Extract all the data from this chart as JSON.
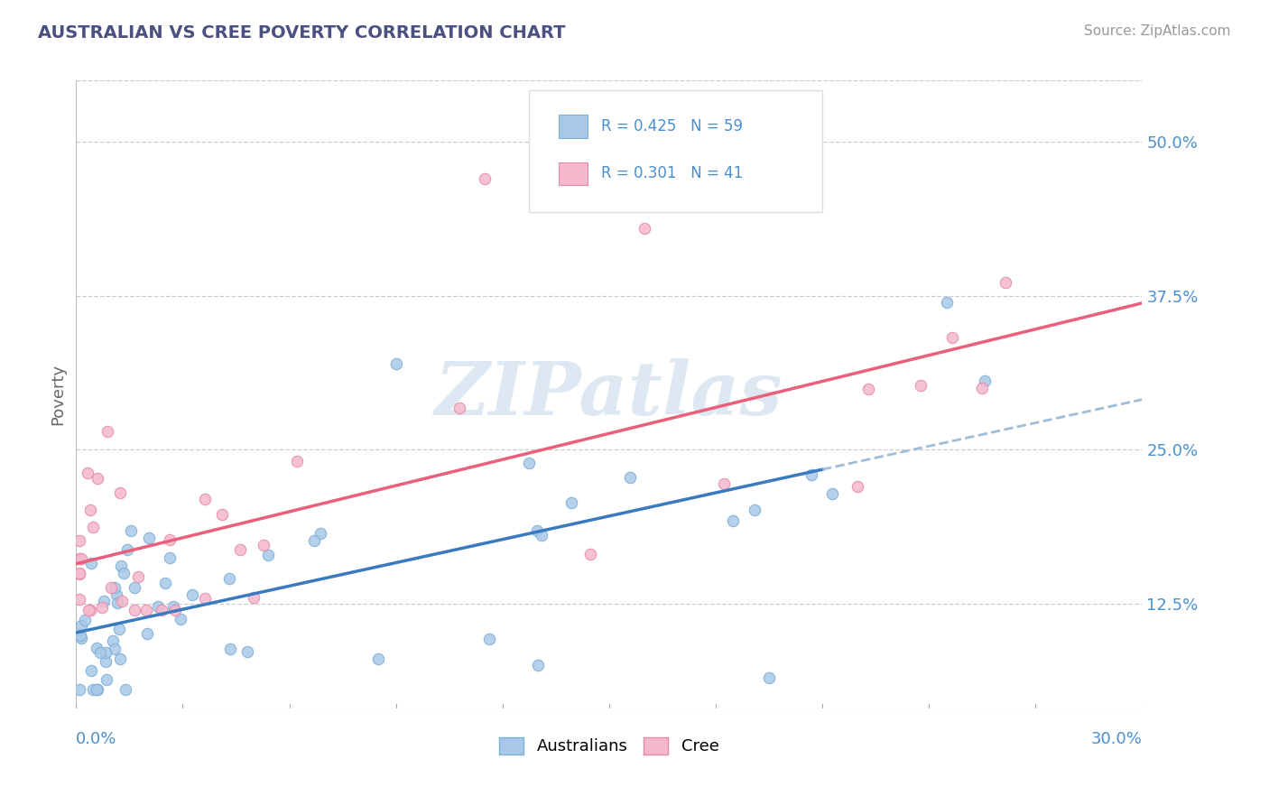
{
  "title": "AUSTRALIAN VS CREE POVERTY CORRELATION CHART",
  "source": "Source: ZipAtlas.com",
  "ylabel_ticks": [
    0.125,
    0.25,
    0.375,
    0.5
  ],
  "ylabel_labels": [
    "12.5%",
    "25.0%",
    "37.5%",
    "50.0%"
  ],
  "xmin": 0.0,
  "xmax": 0.3,
  "ymin": 0.04,
  "ymax": 0.55,
  "legend_r1": "R = 0.425",
  "legend_n1": "N = 59",
  "legend_r2": "R = 0.301",
  "legend_n2": "N = 41",
  "legend_bottom": [
    "Australians",
    "Cree"
  ],
  "australian_scatter_color": "#a8c8e8",
  "australian_edge_color": "#7bafd4",
  "cree_scatter_color": "#f4b8cc",
  "cree_edge_color": "#e888a8",
  "australian_trend_color": "#3a7abf",
  "cree_trend_color": "#e8607a",
  "dashed_color": "#9fbcd8",
  "watermark_text": "ZIPatlas",
  "watermark_color": "#c8daea",
  "background_color": "#ffffff",
  "grid_color": "#cccccc",
  "title_color": "#4a5080",
  "label_color": "#4a90d0",
  "axis_label_color": "#666666"
}
